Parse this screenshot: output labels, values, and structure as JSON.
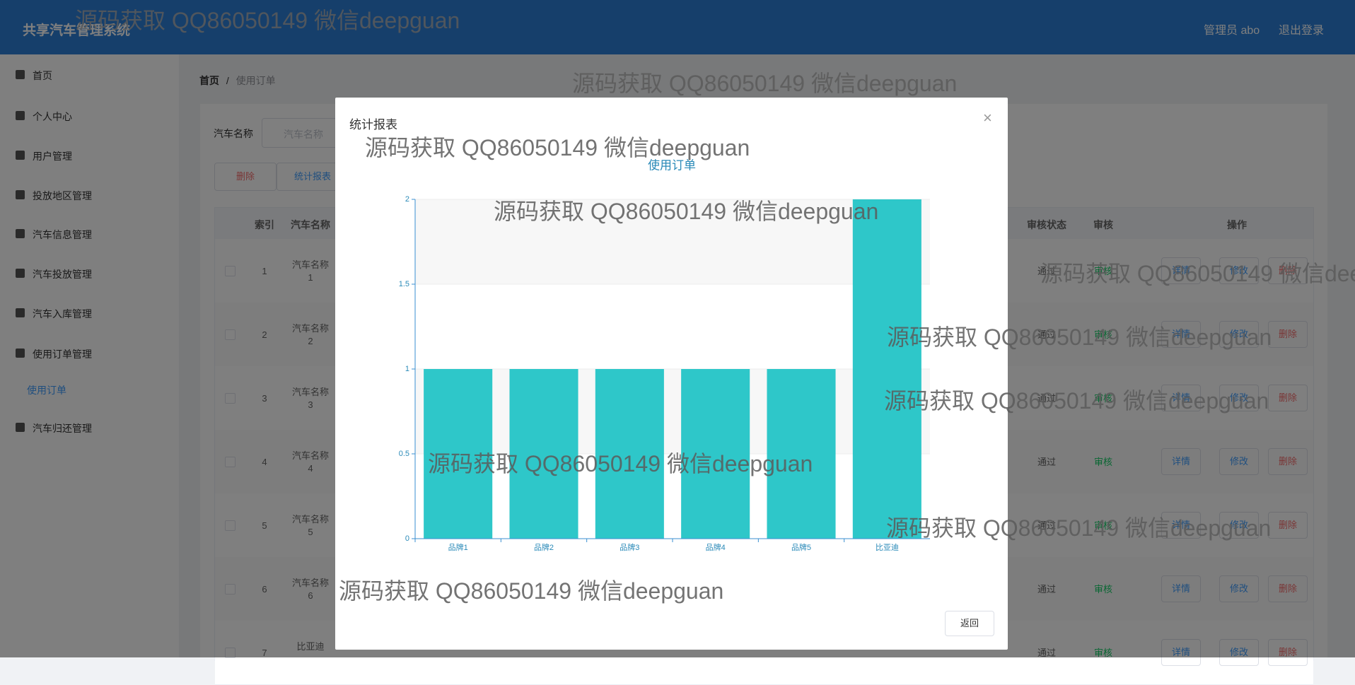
{
  "header": {
    "title": "共享汽车管理系统",
    "user": "管理员 abo",
    "logout": "退出登录"
  },
  "sidebar": {
    "items": [
      "首页",
      "个人中心",
      "用户管理",
      "投放地区管理",
      "汽车信息管理",
      "汽车投放管理",
      "汽车入库管理",
      "使用订单管理",
      "使用订单",
      "汽车归还管理"
    ]
  },
  "breadcrumb": {
    "home": "首页",
    "separator": "/",
    "current": "使用订单"
  },
  "search": {
    "label": "汽车名称",
    "placeholder": "汽车名称"
  },
  "toolbar": {
    "delete": "删除",
    "report": "统计报表"
  },
  "table": {
    "headers": [
      "索引",
      "汽车名称",
      "审核状态",
      "审核",
      "操作"
    ],
    "rows": [
      [
        "1",
        "汽车名称\n1",
        "通过",
        "审核",
        "详情",
        "修改",
        "删除"
      ],
      [
        "2",
        "汽车名称\n2",
        "通过",
        "审核",
        "详情",
        "修改",
        "删除"
      ],
      [
        "3",
        "汽车名称\n3",
        "通过",
        "审核",
        "详情",
        "修改",
        "删除"
      ],
      [
        "4",
        "汽车名称\n4",
        "通过",
        "审核",
        "详情",
        "修改",
        "删除"
      ],
      [
        "5",
        "汽车名称\n5",
        "通过",
        "审核",
        "详情",
        "修改",
        "删除"
      ],
      [
        "6",
        "汽车名称\n6",
        "通过",
        "审核",
        "详情",
        "修改",
        "删除"
      ],
      [
        "7",
        "比亚迪",
        "通过",
        "审核",
        "详情",
        "修改",
        "删除"
      ]
    ]
  },
  "modal": {
    "title": "统计报表",
    "close": "×",
    "back": "返回"
  },
  "watermark": "源码获取 QQ86050149 微信deepguan",
  "chart_data": {
    "type": "bar",
    "title": "使用订单",
    "categories": [
      "品牌1",
      "品牌2",
      "品牌3",
      "品牌4",
      "品牌5",
      "比亚迪"
    ],
    "values": [
      1,
      1,
      1,
      1,
      1,
      2
    ],
    "color": "#2ec7c9",
    "ylim": [
      0,
      2
    ],
    "yticks": [
      0,
      0.5,
      1,
      1.5,
      2
    ],
    "split_area": true
  }
}
